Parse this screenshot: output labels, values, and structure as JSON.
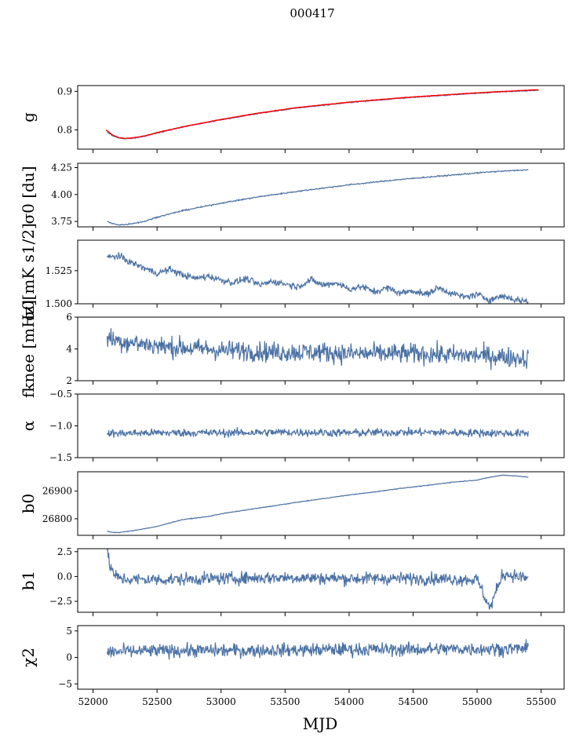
{
  "figure_title": "000417",
  "colors": {
    "series": "#4c72a4",
    "fit": "#ff0000",
    "axes": "#000000"
  },
  "chart_data": [
    {
      "type": "line",
      "id": "g",
      "ylabel": "g",
      "xlim": [
        51880,
        55680
      ],
      "ylim": [
        0.75,
        0.915
      ],
      "yticks": [
        0.8,
        0.9
      ],
      "ytick_labels": [
        "0.8",
        "0.9"
      ],
      "series": [
        {
          "name": "g",
          "color": "#4c72a4",
          "x": [
            52110,
            52150,
            52200,
            52250,
            52300,
            52400,
            52500,
            52700,
            53000,
            53300,
            53600,
            54000,
            54400,
            54800,
            55100,
            55400,
            55480
          ],
          "y": [
            0.795,
            0.785,
            0.779,
            0.777,
            0.778,
            0.783,
            0.792,
            0.807,
            0.826,
            0.843,
            0.857,
            0.871,
            0.882,
            0.891,
            0.897,
            0.902,
            0.903
          ]
        },
        {
          "name": "g fit",
          "color": "#ff0000",
          "x": [
            52100,
            52120,
            52150,
            52200,
            52250,
            52300,
            52400,
            52500,
            52700,
            53000,
            53300,
            53600,
            54000,
            54400,
            54800,
            55100,
            55400,
            55480
          ],
          "y": [
            0.8,
            0.795,
            0.787,
            0.78,
            0.778,
            0.779,
            0.784,
            0.793,
            0.808,
            0.827,
            0.844,
            0.858,
            0.872,
            0.883,
            0.892,
            0.898,
            0.903,
            0.904
          ]
        }
      ]
    },
    {
      "type": "line",
      "id": "sigma0_du",
      "ylabel": "σ0 [du]",
      "xlim": [
        51880,
        55680
      ],
      "ylim": [
        3.7,
        4.29
      ],
      "yticks": [
        3.75,
        4.0,
        4.25
      ],
      "ytick_labels": [
        "3.75",
        "4.00",
        "4.25"
      ],
      "series": [
        {
          "name": "sigma0_du",
          "color": "#4c72a4",
          "x": [
            52110,
            52150,
            52200,
            52250,
            52300,
            52400,
            52500,
            52700,
            53000,
            53300,
            53600,
            54000,
            54400,
            54800,
            55100,
            55400
          ],
          "y": [
            3.75,
            3.73,
            3.72,
            3.72,
            3.73,
            3.75,
            3.79,
            3.85,
            3.92,
            3.98,
            4.03,
            4.09,
            4.14,
            4.18,
            4.21,
            4.23
          ]
        }
      ]
    },
    {
      "type": "line",
      "id": "sigma0_mk",
      "ylabel": "σ0[mK s1/2]",
      "xlim": [
        51880,
        55680
      ],
      "ylim": [
        1.5,
        1.548
      ],
      "yticks": [
        1.5,
        1.525
      ],
      "ytick_labels": [
        "1.500",
        "1.525"
      ],
      "series": [
        {
          "name": "sigma0_mk",
          "color": "#4c72a4",
          "x": [
            52110,
            52200,
            52300,
            52400,
            52500,
            52600,
            52700,
            52800,
            52900,
            53000,
            53100,
            53200,
            53300,
            53400,
            53500,
            53600,
            53700,
            53800,
            53900,
            54000,
            54100,
            54200,
            54300,
            54400,
            54500,
            54600,
            54700,
            54800,
            54900,
            55000,
            55100,
            55200,
            55300,
            55400
          ],
          "y": [
            1.535,
            1.536,
            1.531,
            1.527,
            1.523,
            1.526,
            1.522,
            1.519,
            1.521,
            1.518,
            1.516,
            1.519,
            1.514,
            1.517,
            1.515,
            1.513,
            1.518,
            1.514,
            1.516,
            1.511,
            1.513,
            1.509,
            1.512,
            1.508,
            1.51,
            1.507,
            1.512,
            1.508,
            1.505,
            1.507,
            1.503,
            1.506,
            1.503,
            1.502
          ]
        }
      ]
    },
    {
      "type": "line",
      "id": "fknee",
      "ylabel": "fknee [mHz]",
      "xlim": [
        51880,
        55680
      ],
      "ylim": [
        2,
        6
      ],
      "yticks": [
        2,
        4,
        6
      ],
      "ytick_labels": [
        "2",
        "4",
        "6"
      ],
      "series": [
        {
          "name": "fknee",
          "color": "#4c72a4",
          "x": [
            52110,
            52200,
            52300,
            52400,
            52500,
            52600,
            52700,
            52800,
            52900,
            53000,
            53200,
            53400,
            53600,
            53800,
            54000,
            54200,
            54400,
            54600,
            54800,
            55000,
            55200,
            55400
          ],
          "y": [
            4.7,
            4.5,
            4.4,
            4.3,
            4.2,
            4.1,
            4.1,
            4.0,
            4.0,
            3.9,
            3.9,
            3.8,
            3.8,
            3.8,
            3.7,
            3.7,
            3.7,
            3.7,
            3.6,
            3.6,
            3.5,
            3.4
          ]
        }
      ]
    },
    {
      "type": "line",
      "id": "alpha",
      "ylabel": "α",
      "xlim": [
        51880,
        55680
      ],
      "ylim": [
        -1.5,
        -0.5
      ],
      "yticks": [
        -1.5,
        -1.0,
        -0.5
      ],
      "ytick_labels": [
        "−1.5",
        "−1.0",
        "−0.5"
      ],
      "series": [
        {
          "name": "alpha",
          "color": "#4c72a4",
          "x": [
            52110,
            52500,
            53000,
            53500,
            54000,
            54500,
            55000,
            55400
          ],
          "y": [
            -1.12,
            -1.11,
            -1.11,
            -1.1,
            -1.11,
            -1.1,
            -1.11,
            -1.12
          ]
        }
      ]
    },
    {
      "type": "line",
      "id": "b0",
      "ylabel": "b0",
      "xlim": [
        51880,
        55680
      ],
      "ylim": [
        26740,
        26970
      ],
      "yticks": [
        26800,
        26900
      ],
      "ytick_labels": [
        "26800",
        "26900"
      ],
      "series": [
        {
          "name": "b0",
          "color": "#4c72a4",
          "x": [
            52110,
            52150,
            52200,
            52300,
            52400,
            52500,
            52600,
            52700,
            52900,
            53000,
            53200,
            53400,
            53600,
            53800,
            54000,
            54200,
            54400,
            54600,
            54800,
            55000,
            55100,
            55200,
            55300,
            55400
          ],
          "y": [
            26755,
            26751,
            26750,
            26756,
            26764,
            26772,
            26785,
            26797,
            26808,
            26818,
            26832,
            26846,
            26860,
            26873,
            26886,
            26897,
            26910,
            26920,
            26932,
            26940,
            26950,
            26958,
            26955,
            26951
          ]
        }
      ]
    },
    {
      "type": "line",
      "id": "b1",
      "ylabel": "b1",
      "xlim": [
        51880,
        55680
      ],
      "ylim": [
        -3.6,
        2.8
      ],
      "yticks": [
        -2.5,
        0.0,
        2.5
      ],
      "ytick_labels": [
        "−2.5",
        "0.0",
        "2.5"
      ],
      "series": [
        {
          "name": "b1",
          "color": "#4c72a4",
          "x": [
            52110,
            52130,
            52160,
            52200,
            52300,
            52600,
            53000,
            53500,
            54000,
            54500,
            55000,
            55100,
            55200,
            55400
          ],
          "y": [
            2.4,
            1.2,
            0.3,
            -0.2,
            -0.3,
            -0.3,
            -0.2,
            -0.1,
            -0.2,
            -0.2,
            -0.3,
            -3.2,
            0.3,
            -0.2
          ]
        }
      ]
    },
    {
      "type": "line",
      "id": "chi2",
      "ylabel": "χ2",
      "xlim": [
        51880,
        55680
      ],
      "ylim": [
        -6,
        6
      ],
      "yticks": [
        -5,
        0,
        5
      ],
      "ytick_labels": [
        "−5",
        "0",
        "5"
      ],
      "xlabel": "MJD",
      "xticks": [
        52000,
        52500,
        53000,
        53500,
        54000,
        54500,
        55000,
        55500
      ],
      "xtick_labels": [
        "52000",
        "52500",
        "53000",
        "53500",
        "54000",
        "54500",
        "55000",
        "55500"
      ],
      "series": [
        {
          "name": "chi2",
          "color": "#4c72a4",
          "x": [
            52110,
            52400,
            52800,
            53200,
            53600,
            54000,
            54400,
            54800,
            55200,
            55400
          ],
          "y": [
            1.0,
            1.2,
            1.3,
            1.3,
            1.4,
            1.5,
            1.5,
            1.6,
            1.6,
            1.7
          ]
        }
      ]
    }
  ]
}
